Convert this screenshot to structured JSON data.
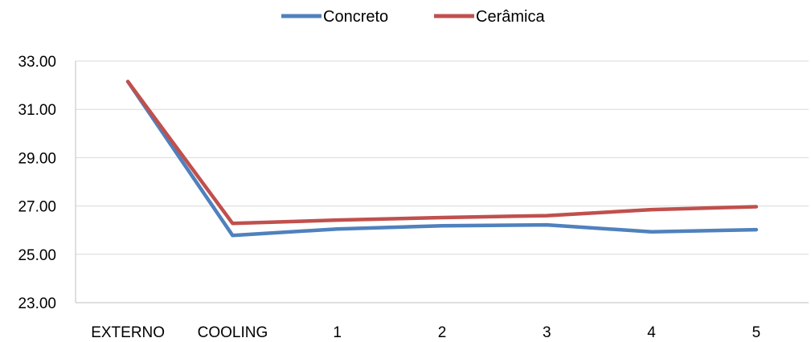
{
  "chart_data": {
    "type": "line",
    "title": "",
    "xlabel": "",
    "ylabel": "",
    "categories": [
      "EXTERNO",
      "COOLING",
      "1",
      "2",
      "3",
      "4",
      "5"
    ],
    "y_ticks": [
      "23.00",
      "25.00",
      "27.00",
      "29.00",
      "31.00",
      "33.00"
    ],
    "ylim": [
      23,
      33
    ],
    "grid": true,
    "legend_position": "top-center",
    "series": [
      {
        "name": "Concreto",
        "color": "#4F81BD",
        "values": [
          32.15,
          25.78,
          26.05,
          26.18,
          26.22,
          25.93,
          26.02
        ]
      },
      {
        "name": "Cerâmica",
        "color": "#C0504D",
        "values": [
          32.15,
          26.28,
          26.42,
          26.52,
          26.6,
          26.85,
          26.97
        ]
      }
    ]
  }
}
